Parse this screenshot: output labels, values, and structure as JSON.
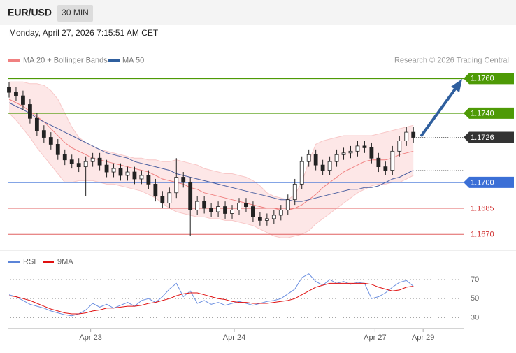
{
  "chart_data": {
    "type": "candlestick",
    "symbol": "EUR/USD",
    "timeframe": "30 MIN",
    "timestamp": "Monday, April 27, 2026 7:15:51 AM CET",
    "legend": [
      "MA 20 + Bollinger Bands",
      "MA 50"
    ],
    "credit": "Research © 2026 Trading Central",
    "ylim": [
      1.1662,
      1.1767
    ],
    "xlim": [
      -0.2,
      65.2
    ],
    "xticks": [
      {
        "value": 11.7,
        "label": "Apr 23"
      },
      {
        "value": 32.3,
        "label": "Apr 24"
      },
      {
        "value": 52.5,
        "label": "Apr 27"
      },
      {
        "value": 59.4,
        "label": "Apr 29"
      }
    ],
    "levels": [
      {
        "value": 1.176,
        "label": "1.1760",
        "color": "#4e9a06",
        "box": true
      },
      {
        "value": 1.174,
        "label": "1.1740",
        "color": "#4e9a06",
        "box": true
      },
      {
        "value": 1.17,
        "label": "1.1700",
        "color": "#3b6fd6",
        "box": true
      },
      {
        "value": 1.1685,
        "color": "#e06060",
        "box": false
      },
      {
        "value": 1.167,
        "label": "1.1670",
        "color": "#e06060",
        "box": false
      }
    ],
    "open": [
      1.1755,
      1.1752,
      1.175,
      1.1745,
      1.1737,
      1.173,
      1.1726,
      1.1722,
      1.1716,
      1.1713,
      1.1711,
      1.1709,
      1.1712,
      1.1714,
      1.171,
      1.1706,
      1.1708,
      1.1704,
      1.1706,
      1.1702,
      1.1704,
      1.1699,
      1.1692,
      1.1688,
      1.1694,
      1.1703,
      1.17,
      1.1684,
      1.1689,
      1.1685,
      1.1683,
      1.1686,
      1.1682,
      1.1684,
      1.1688,
      1.1686,
      1.168,
      1.1678,
      1.1679,
      1.1681,
      1.1684,
      1.169,
      1.1699,
      1.1712,
      1.1716,
      1.171,
      1.1707,
      1.1712,
      1.1716,
      1.1717,
      1.1718,
      1.1721,
      1.172,
      1.1714,
      1.1709,
      1.1707,
      1.1718,
      1.1724,
      1.1729
    ],
    "high": [
      1.1758,
      1.1755,
      1.1753,
      1.1748,
      1.174,
      1.1733,
      1.1729,
      1.1725,
      1.1719,
      1.1716,
      1.1714,
      1.1715,
      1.1717,
      1.1717,
      1.1713,
      1.1711,
      1.1711,
      1.1709,
      1.1709,
      1.1707,
      1.1707,
      1.1702,
      1.1695,
      1.1697,
      1.1714,
      1.1706,
      1.1703,
      1.1692,
      1.1692,
      1.1688,
      1.1689,
      1.1689,
      1.1687,
      1.1691,
      1.1691,
      1.1689,
      1.1683,
      1.1682,
      1.1684,
      1.1687,
      1.1693,
      1.1702,
      1.1715,
      1.1719,
      1.1719,
      1.1713,
      1.1715,
      1.1719,
      1.172,
      1.1721,
      1.1724,
      1.1724,
      1.1723,
      1.1717,
      1.1712,
      1.1721,
      1.1727,
      1.1732,
      1.1732
    ],
    "low": [
      1.1749,
      1.1747,
      1.1742,
      1.1734,
      1.1727,
      1.1723,
      1.1719,
      1.1713,
      1.171,
      1.1708,
      1.1706,
      1.1692,
      1.1709,
      1.1707,
      1.1703,
      1.1703,
      1.1701,
      1.1701,
      1.1699,
      1.1699,
      1.1696,
      1.1689,
      1.1685,
      1.1685,
      1.1691,
      1.1697,
      1.1669,
      1.1681,
      1.1682,
      1.168,
      1.168,
      1.1679,
      1.1679,
      1.1681,
      1.1683,
      1.1677,
      1.1675,
      1.1675,
      1.1676,
      1.1678,
      1.1681,
      1.1687,
      1.1696,
      1.1709,
      1.1707,
      1.1704,
      1.1704,
      1.1709,
      1.1713,
      1.1714,
      1.1715,
      1.1717,
      1.1711,
      1.1706,
      1.1704,
      1.1704,
      1.1715,
      1.1721,
      1.1723
    ],
    "close": [
      1.1752,
      1.175,
      1.1745,
      1.1737,
      1.173,
      1.1726,
      1.1722,
      1.1716,
      1.1713,
      1.1711,
      1.1709,
      1.1712,
      1.1714,
      1.171,
      1.1706,
      1.1708,
      1.1704,
      1.1706,
      1.1702,
      1.1704,
      1.1699,
      1.1692,
      1.1688,
      1.1694,
      1.1703,
      1.17,
      1.1684,
      1.1689,
      1.1685,
      1.1683,
      1.1686,
      1.1682,
      1.1684,
      1.1688,
      1.1686,
      1.168,
      1.1678,
      1.1679,
      1.1681,
      1.1684,
      1.169,
      1.1699,
      1.1712,
      1.1716,
      1.171,
      1.1707,
      1.1712,
      1.1716,
      1.1717,
      1.1718,
      1.1721,
      1.172,
      1.1714,
      1.1709,
      1.1707,
      1.1718,
      1.1724,
      1.1729,
      1.1726
    ],
    "ma20": [
      1.1748,
      1.1746,
      1.1744,
      1.1741,
      1.1738,
      1.1735,
      1.1731,
      1.1727,
      1.1723,
      1.172,
      1.1718,
      1.1716,
      1.1714,
      1.1713,
      1.1712,
      1.1711,
      1.171,
      1.1709,
      1.1708,
      1.1707,
      1.1706,
      1.1704,
      1.1702,
      1.1701,
      1.17,
      1.1699,
      1.1697,
      1.1696,
      1.1694,
      1.1693,
      1.1692,
      1.1691,
      1.169,
      1.1689,
      1.1688,
      1.1687,
      1.1686,
      1.1685,
      1.1685,
      1.1684,
      1.1684,
      1.1685,
      1.1687,
      1.169,
      1.1693,
      1.1697,
      1.17,
      1.1703,
      1.1706,
      1.1708,
      1.171,
      1.1712,
      1.1713,
      1.1713,
      1.1713,
      1.1714,
      1.1716,
      1.1717,
      1.1718
    ],
    "ma50": [
      1.1746,
      1.1744,
      1.1742,
      1.174,
      1.1737,
      1.1735,
      1.1733,
      1.1731,
      1.1729,
      1.1727,
      1.1725,
      1.1723,
      1.1721,
      1.1719,
      1.1717,
      1.1716,
      1.1715,
      1.1714,
      1.1712,
      1.1711,
      1.171,
      1.1709,
      1.1708,
      1.1707,
      1.1705,
      1.1704,
      1.1703,
      1.1702,
      1.1701,
      1.17,
      1.1699,
      1.1698,
      1.1697,
      1.1696,
      1.1695,
      1.1694,
      1.1693,
      1.1692,
      1.1691,
      1.169,
      1.169,
      1.1689,
      1.1689,
      1.169,
      1.1691,
      1.1692,
      1.1693,
      1.1694,
      1.1695,
      1.1696,
      1.1696,
      1.1697,
      1.1697,
      1.1698,
      1.17,
      1.1702,
      1.1703,
      1.1705,
      1.1707
    ],
    "bb_upper": [
      1.1758,
      1.1758,
      1.1758,
      1.1757,
      1.1757,
      1.1756,
      1.1753,
      1.1748,
      1.174,
      1.1732,
      1.1726,
      1.1723,
      1.1721,
      1.1719,
      1.1718,
      1.1717,
      1.1716,
      1.1715,
      1.1714,
      1.1714,
      1.1713,
      1.1713,
      1.1712,
      1.1712,
      1.1713,
      1.1712,
      1.1711,
      1.171,
      1.1708,
      1.1707,
      1.1706,
      1.1705,
      1.1705,
      1.1704,
      1.1703,
      1.1701,
      1.1698,
      1.1694,
      1.1692,
      1.1691,
      1.169,
      1.1693,
      1.17,
      1.1712,
      1.1722,
      1.1724,
      1.1725,
      1.1726,
      1.1727,
      1.1727,
      1.1727,
      1.1727,
      1.1727,
      1.1728,
      1.1729,
      1.173,
      1.1731,
      1.1732,
      1.1733
    ],
    "bb_lower": [
      1.174,
      1.1736,
      1.1731,
      1.1726,
      1.172,
      1.1715,
      1.171,
      1.1705,
      1.17,
      1.17,
      1.1701,
      1.1701,
      1.1701,
      1.17,
      1.1699,
      1.1699,
      1.1698,
      1.1697,
      1.1696,
      1.1695,
      1.1693,
      1.1691,
      1.1688,
      1.1685,
      1.1683,
      1.1682,
      1.1681,
      1.168,
      1.168,
      1.1679,
      1.1679,
      1.1678,
      1.1678,
      1.1677,
      1.1676,
      1.1675,
      1.1673,
      1.1671,
      1.1669,
      1.1668,
      1.1668,
      1.1669,
      1.167,
      1.1672,
      1.1676,
      1.1679,
      1.1682,
      1.1685,
      1.1688,
      1.1691,
      1.1694,
      1.1696,
      1.1698,
      1.1699,
      1.1699,
      1.17,
      1.17,
      1.1702,
      1.1704
    ],
    "rsi": {
      "legend": [
        "RSI",
        "9MA"
      ],
      "ylim": [
        20,
        81
      ],
      "yticks": [
        30,
        50,
        70
      ],
      "values": [
        54,
        52,
        48,
        44,
        42,
        40,
        37,
        35,
        33,
        32,
        34,
        38,
        45,
        41,
        44,
        40,
        43,
        46,
        42,
        48,
        50,
        46,
        52,
        60,
        66,
        52,
        58,
        45,
        48,
        44,
        46,
        43,
        45,
        47,
        45,
        43,
        45,
        47,
        48,
        50,
        55,
        60,
        72,
        76,
        68,
        64,
        70,
        66,
        68,
        65,
        67,
        66,
        50,
        52,
        56,
        62,
        67,
        69,
        63
      ],
      "ma": [
        53,
        52,
        50,
        48,
        45,
        42,
        39,
        37,
        35,
        34,
        34,
        35,
        37,
        38,
        40,
        40,
        41,
        42,
        42,
        43,
        45,
        46,
        48,
        50,
        53,
        55,
        56,
        56,
        54,
        52,
        50,
        49,
        47,
        46,
        46,
        45,
        45,
        45,
        46,
        47,
        48,
        50,
        54,
        58,
        62,
        64,
        66,
        66,
        66,
        66,
        66,
        66,
        65,
        62,
        60,
        58,
        59,
        62,
        63
      ]
    }
  }
}
